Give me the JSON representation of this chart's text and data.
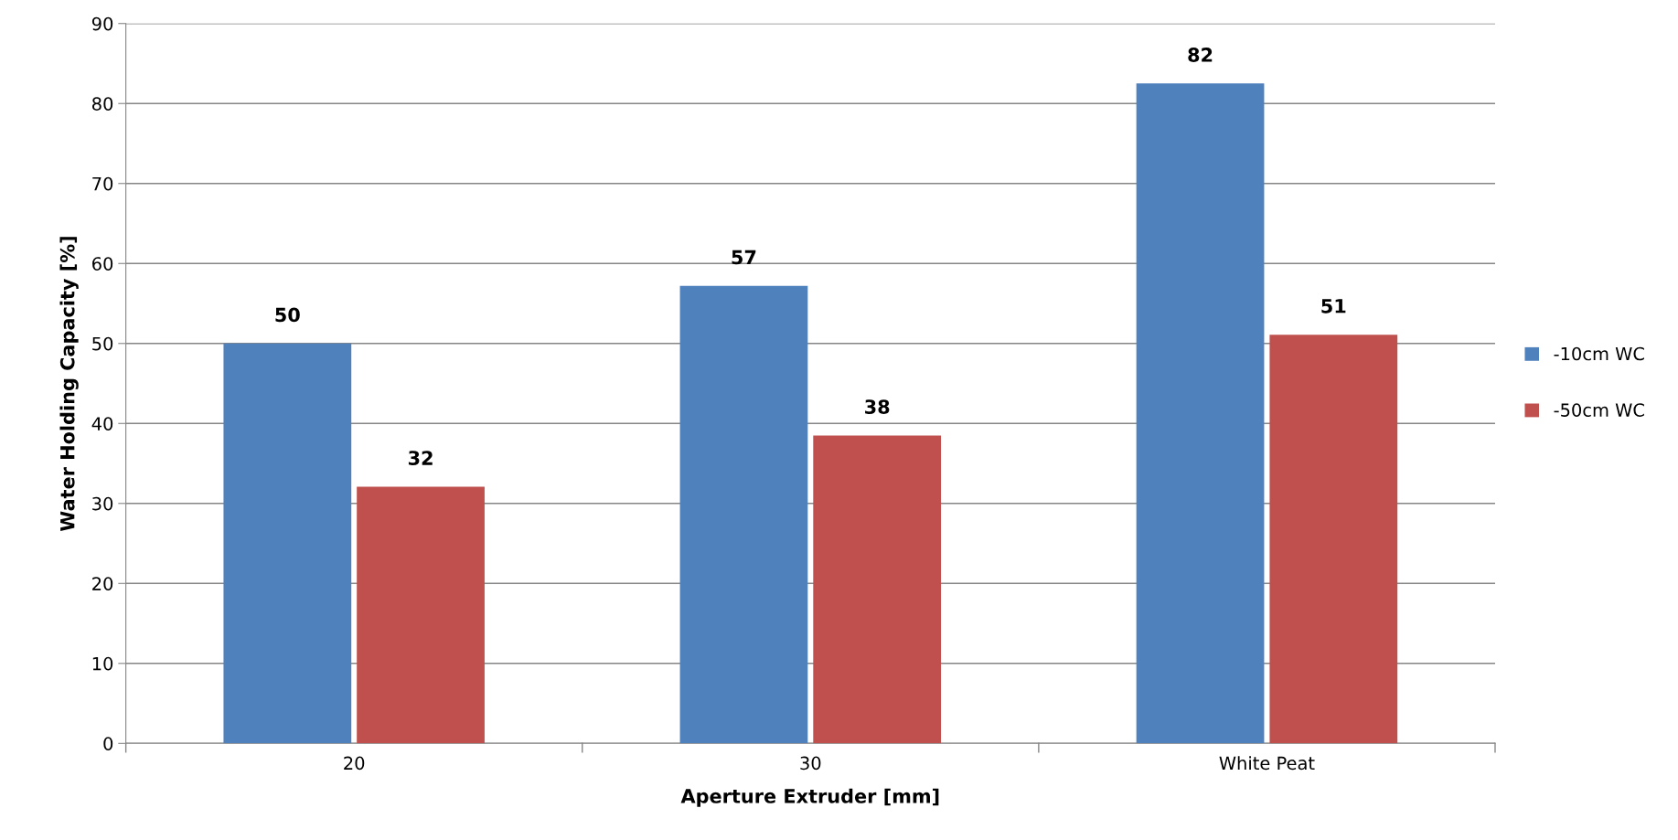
{
  "chart_data": {
    "type": "bar",
    "xlabel": "Aperture Extruder [mm]",
    "ylabel": "Water Holding Capacity [%]",
    "categories": [
      "20",
      "30",
      "White Peat"
    ],
    "series": [
      {
        "name": "-10cm WC",
        "color": "#4f81bd",
        "values": [
          50.0,
          57.2,
          82.5
        ],
        "value_labels": [
          "50",
          "57",
          "82"
        ]
      },
      {
        "name": "-50cm WC",
        "color": "#c0504d",
        "values": [
          32.1,
          38.5,
          51.1
        ],
        "value_labels": [
          "32",
          "38",
          "51"
        ]
      }
    ],
    "ylim": [
      0,
      90
    ],
    "yticks": [
      0,
      10,
      20,
      30,
      40,
      50,
      60,
      70,
      80,
      90
    ],
    "grid": "y",
    "legend": "right"
  }
}
